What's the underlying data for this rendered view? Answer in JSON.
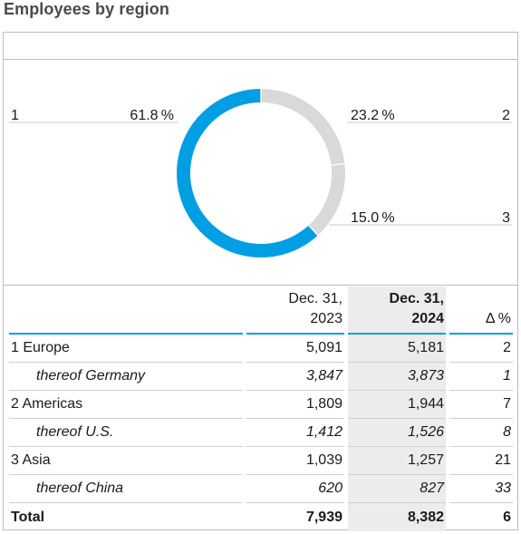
{
  "title": "Employees by region",
  "chart_data": {
    "type": "pie",
    "donut": true,
    "categories": [
      "1",
      "2",
      "3"
    ],
    "values": [
      61.8,
      23.2,
      15.0
    ],
    "value_labels": [
      "61.8 %",
      "23.2 %",
      "15.0 %"
    ],
    "colors": [
      "#009ee3",
      "#d9d9d9",
      "#d9d9d9"
    ]
  },
  "table": {
    "headers": {
      "col2023": [
        "Dec. 31,",
        "2023"
      ],
      "col2024": [
        "Dec. 31,",
        "2024"
      ],
      "delta": "Δ %"
    },
    "rows": [
      {
        "label": "1 Europe",
        "v2023": "5,091",
        "v2024": "5,181",
        "delta": "2",
        "sub": false
      },
      {
        "label": "thereof Germany",
        "v2023": "3,847",
        "v2024": "3,873",
        "delta": "1",
        "sub": true
      },
      {
        "label": "2 Americas",
        "v2023": "1,809",
        "v2024": "1,944",
        "delta": "7",
        "sub": false
      },
      {
        "label": "thereof U.S.",
        "v2023": "1,412",
        "v2024": "1,526",
        "delta": "8",
        "sub": true
      },
      {
        "label": "3 Asia",
        "v2023": "1,039",
        "v2024": "1,257",
        "delta": "21",
        "sub": false
      },
      {
        "label": "thereof China",
        "v2023": "620",
        "v2024": "827",
        "delta": "33",
        "sub": true
      }
    ],
    "total": {
      "label": "Total",
      "v2023": "7,939",
      "v2024": "8,382",
      "delta": "6"
    }
  }
}
